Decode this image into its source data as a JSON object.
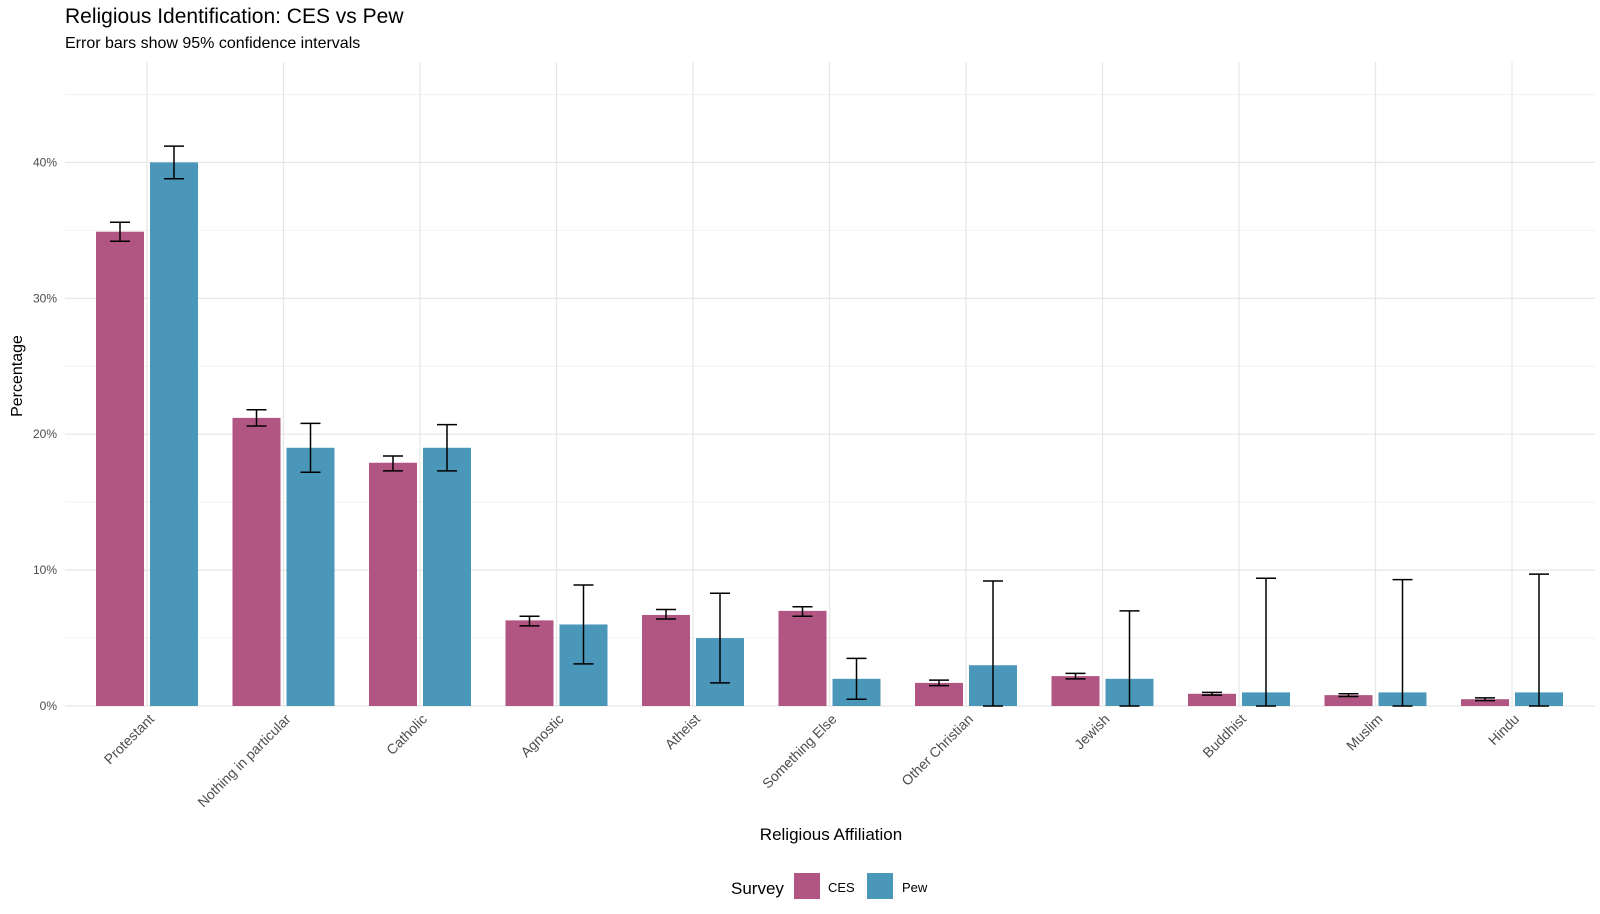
{
  "chart_data": {
    "type": "bar",
    "title": "Religious Identification: CES vs Pew",
    "subtitle": "Error bars show 95% confidence intervals",
    "xlabel": "Religious Affiliation",
    "ylabel": "Percentage",
    "ylim": [
      0,
      46
    ],
    "y_ticks": [
      {
        "value": 0,
        "label": "0%"
      },
      {
        "value": 10,
        "label": "10%"
      },
      {
        "value": 20,
        "label": "20%"
      },
      {
        "value": 30,
        "label": "30%"
      },
      {
        "value": 40,
        "label": "40%"
      }
    ],
    "grid": true,
    "legend": {
      "title": "Survey",
      "placement": "bottom"
    },
    "categories": [
      "Protestant",
      "Nothing in particular",
      "Catholic",
      "Agnostic",
      "Atheist",
      "Something Else",
      "Other Christian",
      "Jewish",
      "Buddhist",
      "Muslim",
      "Hindu"
    ],
    "series": [
      {
        "name": "CES",
        "color": "#b15683",
        "values": [
          34.9,
          21.2,
          17.9,
          6.3,
          6.7,
          7.0,
          1.7,
          2.2,
          0.9,
          0.8,
          0.5
        ],
        "ci_low": [
          34.2,
          20.6,
          17.3,
          5.9,
          6.4,
          6.6,
          1.5,
          2.0,
          0.8,
          0.7,
          0.4
        ],
        "ci_high": [
          35.6,
          21.8,
          18.4,
          6.6,
          7.1,
          7.3,
          1.9,
          2.4,
          1.0,
          0.9,
          0.6
        ]
      },
      {
        "name": "Pew",
        "color": "#4b97b9",
        "values": [
          40.0,
          19.0,
          19.0,
          6.0,
          5.0,
          2.0,
          3.0,
          2.0,
          1.0,
          1.0,
          1.0
        ],
        "ci_low": [
          38.8,
          17.2,
          17.3,
          3.1,
          1.7,
          0.5,
          0.0,
          0.0,
          0.0,
          0.0,
          0.0
        ],
        "ci_high": [
          41.2,
          20.8,
          20.7,
          8.9,
          8.3,
          3.5,
          9.2,
          7.0,
          9.4,
          9.3,
          9.7
        ]
      }
    ]
  }
}
